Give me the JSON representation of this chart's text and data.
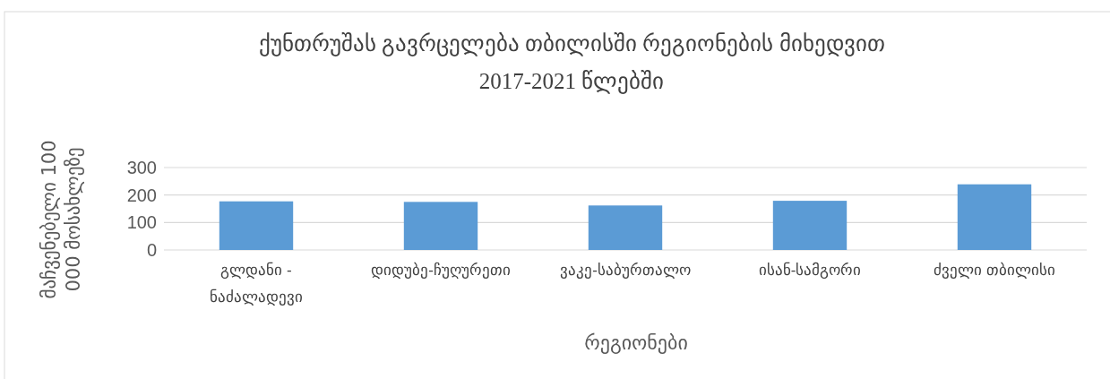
{
  "chart_data": {
    "type": "bar",
    "title": "ქუნთრუშას გავრცელება თბილისში რეგიონების მიხედვით\n2017-2021 წლებში",
    "xlabel": "რეგიონები",
    "ylabel": "მაჩვენებელი 100 000 მოსახლეზე",
    "categories": [
      "გლდანი - ნაძალადევი",
      "დიდუბე-ჩუღურეთი",
      "ვაკე-საბურთალო",
      "ისან-სამგორი",
      "ძველი თბილისი"
    ],
    "series": [
      {
        "color": "#5b9bd5",
        "values": [
          177,
          175,
          162,
          179,
          239
        ]
      }
    ],
    "ylim": [
      0,
      300
    ],
    "yticks": [
      0,
      100,
      200,
      300
    ],
    "grid": "y"
  }
}
